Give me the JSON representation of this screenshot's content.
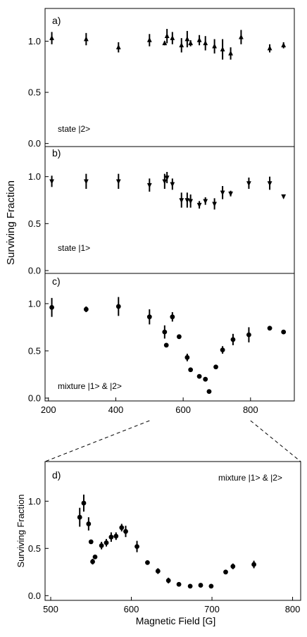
{
  "figure": {
    "shared_ylabel": "Surviving Fraction",
    "shared_xlabel": ""
  },
  "chart_data": [
    {
      "panel": "a)",
      "type": "scatter",
      "marker": "triangle-up",
      "annotation": "state |2>",
      "xlim": [
        190,
        930
      ],
      "ylim": [
        -0.03,
        1.32
      ],
      "yticks": [
        0.0,
        0.5,
        1.0
      ],
      "ytick_labels": [
        "0.0",
        "0.5",
        "1.0"
      ],
      "xticks": [],
      "x": [
        210,
        312,
        408,
        500,
        545,
        552,
        568,
        595,
        612,
        622,
        648,
        666,
        693,
        717,
        741,
        772,
        857,
        898
      ],
      "y": [
        1.03,
        1.02,
        0.94,
        1.01,
        0.98,
        1.05,
        1.03,
        0.96,
        1.02,
        0.98,
        1.01,
        0.98,
        0.95,
        0.92,
        0.88,
        1.04,
        0.93,
        0.96
      ],
      "yerr": [
        0.06,
        0.06,
        0.05,
        0.06,
        0.02,
        0.07,
        0.06,
        0.07,
        0.08,
        0.03,
        0.05,
        0.07,
        0.07,
        0.1,
        0.06,
        0.07,
        0.04,
        0.03
      ]
    },
    {
      "panel": "b)",
      "type": "scatter",
      "marker": "triangle-down",
      "annotation": "state |1>",
      "xlim": [
        190,
        930
      ],
      "ylim": [
        -0.03,
        1.32
      ],
      "yticks": [
        0.0,
        0.5,
        1.0
      ],
      "ytick_labels": [
        "0.0",
        "0.5",
        "1.0"
      ],
      "xticks": [],
      "x": [
        210,
        312,
        408,
        500,
        545,
        552,
        568,
        595,
        612,
        622,
        648,
        666,
        693,
        717,
        741,
        795,
        857,
        898
      ],
      "y": [
        0.95,
        0.95,
        0.95,
        0.91,
        0.95,
        0.99,
        0.92,
        0.75,
        0.75,
        0.74,
        0.7,
        0.74,
        0.71,
        0.83,
        0.82,
        0.93,
        0.93,
        0.79
      ],
      "yerr": [
        0.06,
        0.08,
        0.08,
        0.07,
        0.08,
        0.06,
        0.06,
        0.08,
        0.08,
        0.07,
        0.04,
        0.04,
        0.06,
        0.07,
        0.03,
        0.06,
        0.07,
        0.02
      ]
    },
    {
      "panel": "c)",
      "type": "scatter",
      "marker": "circle",
      "annotation": "mixture |1> & |2>",
      "xlim": [
        190,
        930
      ],
      "ylim": [
        -0.03,
        1.32
      ],
      "yticks": [
        0.0,
        0.5,
        1.0
      ],
      "ytick_labels": [
        "0.0",
        "0.5",
        "1.0"
      ],
      "xticks": [
        200,
        400,
        600,
        800
      ],
      "xtick_labels": [
        "200",
        "400",
        "600",
        "800"
      ],
      "x": [
        210,
        312,
        408,
        500,
        545,
        550,
        568,
        588,
        612,
        622,
        648,
        666,
        677,
        697,
        717,
        748,
        795,
        857,
        898
      ],
      "y": [
        0.96,
        0.94,
        0.97,
        0.86,
        0.7,
        0.56,
        0.86,
        0.65,
        0.43,
        0.3,
        0.23,
        0.2,
        0.07,
        0.33,
        0.51,
        0.62,
        0.67,
        0.74,
        0.7
      ],
      "yerr": [
        0.1,
        0.03,
        0.1,
        0.08,
        0.07,
        0.02,
        0.05,
        0.02,
        0.04,
        0.02,
        0.02,
        0.02,
        0.02,
        0.02,
        0.04,
        0.06,
        0.08,
        0.02,
        0.02
      ]
    },
    {
      "panel": "d)",
      "type": "scatter",
      "marker": "circle",
      "annotation": "mixture |1> & |2>",
      "ylabel": "Surviving Fraction",
      "xlabel": "Magnetic Field [G]",
      "xlim": [
        493,
        810
      ],
      "ylim": [
        -0.05,
        1.42
      ],
      "yticks": [
        0.0,
        0.5,
        1.0
      ],
      "ytick_labels": [
        "0.0",
        "0.5",
        "1.0"
      ],
      "xticks": [
        500,
        600,
        700,
        800
      ],
      "xtick_labels": [
        "500",
        "600",
        "700",
        "800"
      ],
      "x": [
        536,
        541,
        547,
        550,
        552,
        555,
        563,
        569,
        575,
        581,
        588,
        593,
        607,
        620,
        633,
        646,
        659,
        673,
        686,
        699,
        717,
        726,
        752
      ],
      "y": [
        0.83,
        0.98,
        0.76,
        0.57,
        0.36,
        0.41,
        0.53,
        0.56,
        0.62,
        0.63,
        0.72,
        0.68,
        0.52,
        0.35,
        0.26,
        0.16,
        0.12,
        0.1,
        0.11,
        0.1,
        0.25,
        0.31,
        0.33
      ],
      "yerr": [
        0.1,
        0.09,
        0.07,
        0.02,
        0.03,
        0.02,
        0.04,
        0.04,
        0.05,
        0.04,
        0.04,
        0.06,
        0.06,
        0.02,
        0.03,
        0.03,
        0.02,
        0.02,
        0.02,
        0.02,
        0.02,
        0.03,
        0.04
      ]
    }
  ]
}
